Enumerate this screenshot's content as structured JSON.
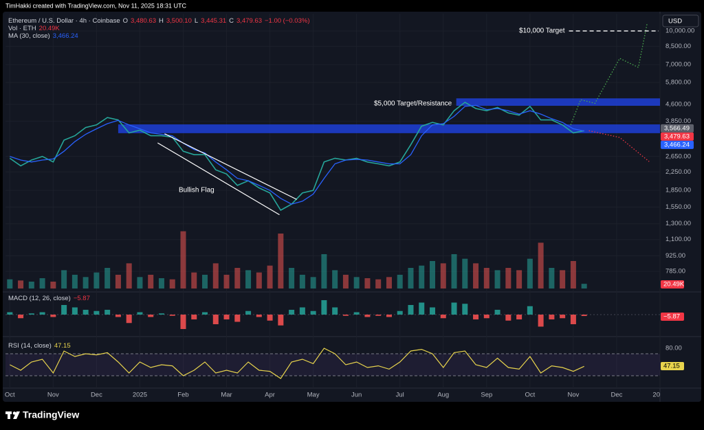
{
  "header": {
    "credit": "TimHakki created with TradingView.com, Nov 11, 2025 18:31 UTC"
  },
  "currency": "USD",
  "footer": {
    "brand": "TradingView"
  },
  "chart_data": [
    {
      "type": "line",
      "title": "Ethereum / U.S. Dollar · 4h · Coinbase",
      "ohlc": [
        {
          "key": "O",
          "value": "3,480.63"
        },
        {
          "key": "H",
          "value": "3,500.10"
        },
        {
          "key": "L",
          "value": "3,445.31"
        },
        {
          "key": "C",
          "value": "3,479.63"
        }
      ],
      "change": "−1.00 (−0.03%)",
      "log_scale": true,
      "grid": true,
      "xlim": [
        -0.1,
        15
      ],
      "ylim": [
        655,
        12000
      ],
      "xticks": [
        {
          "value": 0,
          "label": "Oct"
        },
        {
          "value": 1,
          "label": "Nov"
        },
        {
          "value": 2,
          "label": "Dec"
        },
        {
          "value": 3,
          "label": "2025"
        },
        {
          "value": 4,
          "label": "Feb"
        },
        {
          "value": 5,
          "label": "Mar"
        },
        {
          "value": 6,
          "label": "Apr"
        },
        {
          "value": 7,
          "label": "May"
        },
        {
          "value": 8,
          "label": "Jun"
        },
        {
          "value": 9,
          "label": "Jul"
        },
        {
          "value": 10,
          "label": "Aug"
        },
        {
          "value": 11,
          "label": "Sep"
        },
        {
          "value": 12,
          "label": "Oct"
        },
        {
          "value": 13,
          "label": "Nov"
        },
        {
          "value": 14,
          "label": "Dec"
        },
        {
          "value": 15,
          "label": "20"
        }
      ],
      "yticks": [
        {
          "value": 10000,
          "label": "10,000.00"
        },
        {
          "value": 8500,
          "label": "8,500.00"
        },
        {
          "value": 7000,
          "label": "7,000.00"
        },
        {
          "value": 5800,
          "label": "5,800.00"
        },
        {
          "value": 4600,
          "label": "4,600.00"
        },
        {
          "value": 3850,
          "label": "3,850.00"
        },
        {
          "value": 2650,
          "label": "2,650.00"
        },
        {
          "value": 2250,
          "label": "2,250.00"
        },
        {
          "value": 1850,
          "label": "1,850.00"
        },
        {
          "value": 1550,
          "label": "1,550.00"
        },
        {
          "value": 1300,
          "label": "1,300.00"
        },
        {
          "value": 1100,
          "label": "1,100.00"
        },
        {
          "value": 925,
          "label": "925.00"
        },
        {
          "value": 785,
          "label": "785.00"
        }
      ],
      "x": [
        0,
        0.25,
        0.5,
        0.75,
        1,
        1.25,
        1.5,
        1.75,
        2,
        2.25,
        2.5,
        2.75,
        3,
        3.25,
        3.5,
        3.75,
        4,
        4.25,
        4.5,
        4.75,
        5,
        5.25,
        5.5,
        5.75,
        6,
        6.25,
        6.5,
        6.75,
        7,
        7.25,
        7.5,
        7.75,
        8,
        8.25,
        8.5,
        8.75,
        9,
        9.25,
        9.5,
        9.75,
        10,
        10.25,
        10.5,
        10.75,
        11,
        11.25,
        11.5,
        11.75,
        12,
        12.25,
        12.5,
        12.75,
        13,
        13.25
      ],
      "series": [
        {
          "name": "Ethereum / U.S. Dollar · 4h · Coinbase",
          "color": "#26a69a",
          "values": [
            2600,
            2400,
            2550,
            2650,
            2500,
            3150,
            3300,
            3600,
            3700,
            4000,
            3900,
            3400,
            3500,
            3300,
            3300,
            3250,
            2800,
            2700,
            2700,
            2300,
            2200,
            1950,
            2050,
            1900,
            1800,
            1500,
            1600,
            1800,
            1850,
            2500,
            2600,
            2550,
            2600,
            2500,
            2450,
            2400,
            2500,
            3000,
            3650,
            3800,
            3700,
            4300,
            4700,
            4400,
            4300,
            4450,
            4200,
            4100,
            4500,
            3900,
            3900,
            3700,
            3400,
            3479.63
          ]
        },
        {
          "name": "MA (30, close)",
          "color": "#2962ff",
          "last_label": "3,466.24",
          "values": [
            2650,
            2550,
            2500,
            2550,
            2580,
            2800,
            3100,
            3350,
            3550,
            3750,
            3880,
            3700,
            3550,
            3400,
            3350,
            3300,
            3050,
            2850,
            2750,
            2500,
            2300,
            2100,
            2050,
            1950,
            1850,
            1700,
            1600,
            1650,
            1780,
            2100,
            2450,
            2550,
            2570,
            2550,
            2500,
            2450,
            2450,
            2700,
            3300,
            3700,
            3750,
            4050,
            4500,
            4550,
            4350,
            4400,
            4300,
            4150,
            4300,
            4150,
            3950,
            3800,
            3550,
            3466.24
          ]
        }
      ],
      "price_labels": [
        {
          "value": 3566.49,
          "label": "3,566.49",
          "color": "#5d606b"
        },
        {
          "value": 3479.63,
          "label": "3,479.63",
          "color": "#f23645"
        },
        {
          "value": 3466.24,
          "label": "3,466.24",
          "color": "#2962ff"
        }
      ],
      "zones": [
        {
          "x": 2.5,
          "low": 3390,
          "high": 3720,
          "color": "#1e3fd6"
        },
        {
          "x": 10.3,
          "low": 4530,
          "high": 4900,
          "color": "#1e3fd6"
        }
      ],
      "channel": {
        "color": "#ffffff",
        "lines": [
          {
            "x": [
              3.41,
              6.22
            ],
            "values": [
              3060,
              1430
            ]
          },
          {
            "x": [
              3.57,
              6.62
            ],
            "values": [
              3370,
              1680
            ]
          }
        ]
      },
      "projections": [
        {
          "color": "#4caf50",
          "x": [
            12.94,
            13.17,
            13.5,
            14.07,
            14.5,
            14.7
          ],
          "values": [
            3700,
            4830,
            4650,
            7480,
            6800,
            10750
          ]
        },
        {
          "color": "#f23645",
          "x": [
            13.36,
            14.07,
            14.75
          ],
          "values": [
            3480,
            3240,
            2510
          ]
        }
      ],
      "target": {
        "value": 10000,
        "x": 12.9,
        "label": "$10,000 Target"
      },
      "annotations": [
        "Bullish Flag",
        "$5,000 Target/Resistance"
      ]
    },
    {
      "type": "bar",
      "title": "Vol · ETH",
      "last_label": "20.49K",
      "ylim": [
        0,
        300
      ],
      "colors": [
        "#26a69a",
        "#ef5350"
      ],
      "x": [
        0,
        0.25,
        0.5,
        0.75,
        1,
        1.25,
        1.5,
        1.75,
        2,
        2.25,
        2.5,
        2.75,
        3,
        3.25,
        3.5,
        3.75,
        4,
        4.25,
        4.5,
        4.75,
        5,
        5.25,
        5.5,
        5.75,
        6,
        6.25,
        6.5,
        6.75,
        7,
        7.25,
        7.5,
        7.75,
        8,
        8.25,
        8.5,
        8.75,
        9,
        9.25,
        9.5,
        9.75,
        10,
        10.25,
        10.5,
        10.75,
        11,
        11.25,
        11.5,
        11.75,
        12,
        12.25,
        12.5,
        12.75,
        13,
        13.25
      ],
      "values": [
        40,
        35,
        30,
        45,
        30,
        80,
        60,
        50,
        70,
        90,
        60,
        110,
        50,
        60,
        45,
        40,
        250,
        70,
        60,
        110,
        60,
        90,
        80,
        70,
        100,
        240,
        90,
        60,
        50,
        150,
        80,
        60,
        50,
        45,
        40,
        50,
        60,
        90,
        100,
        120,
        110,
        150,
        130,
        110,
        90,
        80,
        90,
        80,
        130,
        200,
        90,
        80,
        120,
        20.49
      ]
    },
    {
      "type": "histogram-bar",
      "title": "MACD (12, 26, close)",
      "last_label": "−5.87",
      "ylim": [
        -80,
        80
      ],
      "colors": [
        "#26a69a",
        "#ff5252"
      ],
      "x": [
        0,
        0.25,
        0.5,
        0.75,
        1,
        1.25,
        1.5,
        1.75,
        2,
        2.25,
        2.5,
        2.75,
        3,
        3.25,
        3.5,
        3.75,
        4,
        4.25,
        4.5,
        4.75,
        5,
        5.25,
        5.5,
        5.75,
        6,
        6.25,
        6.5,
        6.75,
        7,
        7.25,
        7.5,
        7.75,
        8,
        8.25,
        8.5,
        8.75,
        9,
        9.25,
        9.5,
        9.75,
        10,
        10.25,
        10.5,
        10.75,
        11,
        11.25,
        11.5,
        11.75,
        12,
        12.25,
        12.5,
        12.75,
        13,
        13.25
      ],
      "values": [
        10,
        -15,
        5,
        10,
        -10,
        40,
        30,
        20,
        15,
        20,
        -10,
        -35,
        10,
        -10,
        5,
        -5,
        -60,
        -20,
        10,
        -40,
        -20,
        -30,
        15,
        -10,
        -25,
        -45,
        20,
        30,
        15,
        60,
        30,
        -5,
        10,
        -10,
        -5,
        -10,
        15,
        40,
        50,
        30,
        -15,
        50,
        45,
        -20,
        -15,
        20,
        -25,
        -20,
        35,
        -50,
        -20,
        -15,
        -40,
        -5.87
      ]
    },
    {
      "type": "line",
      "title": "RSI (14, close)",
      "last_label": "47.15",
      "color": "#e8d44d",
      "ylim": [
        11.25,
        97.5
      ],
      "yticks": [
        {
          "value": 80,
          "label": "80.00"
        }
      ],
      "bands": [
        30,
        70
      ],
      "x": [
        0,
        0.25,
        0.5,
        0.75,
        1,
        1.25,
        1.5,
        1.75,
        2,
        2.25,
        2.5,
        2.75,
        3,
        3.25,
        3.5,
        3.75,
        4,
        4.25,
        4.5,
        4.75,
        5,
        5.25,
        5.5,
        5.75,
        6,
        6.25,
        6.5,
        6.75,
        7,
        7.25,
        7.5,
        7.75,
        8,
        8.25,
        8.5,
        8.75,
        9,
        9.25,
        9.5,
        9.75,
        10,
        10.25,
        10.5,
        10.75,
        11,
        11.25,
        11.5,
        11.75,
        12,
        12.25,
        12.5,
        12.75,
        13,
        13.25
      ],
      "values": [
        50,
        40,
        55,
        60,
        35,
        75,
        65,
        70,
        68,
        72,
        55,
        35,
        55,
        45,
        50,
        48,
        30,
        40,
        55,
        35,
        40,
        35,
        55,
        40,
        38,
        25,
        55,
        60,
        52,
        80,
        70,
        50,
        55,
        45,
        48,
        42,
        55,
        75,
        78,
        70,
        45,
        72,
        75,
        50,
        45,
        62,
        45,
        42,
        65,
        35,
        48,
        45,
        38,
        47.15
      ]
    }
  ]
}
